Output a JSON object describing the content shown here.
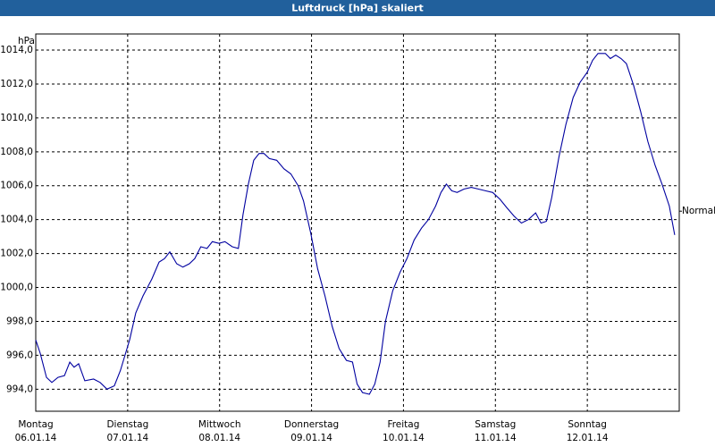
{
  "chart_data": {
    "type": "line",
    "title": "Luftdruck [hPa] skaliert",
    "y_unit": "hPa",
    "x": [
      0,
      1.2,
      2.8,
      4.2,
      5.8,
      7.5,
      8.9,
      10.0,
      11.2,
      12.8,
      15.1,
      16.8,
      18.6,
      20.5,
      22.1,
      24.5,
      26.1,
      28.0,
      30.3,
      32.2,
      33.6,
      35.0,
      36.8,
      38.4,
      40.1,
      41.5,
      43.1,
      44.7,
      46.1,
      47.8,
      49.4,
      51.3,
      52.9,
      54.1,
      55.5,
      56.9,
      58.3,
      59.6,
      61.0,
      62.9,
      64.8,
      66.6,
      68.5,
      69.9,
      71.8,
      73.6,
      75.5,
      77.4,
      79.2,
      81.1,
      82.7,
      83.9,
      85.3,
      87.1,
      88.5,
      89.9,
      91.3,
      93.2,
      95.1,
      96.9,
      98.8,
      100.7,
      102.5,
      104.4,
      105.8,
      107.2,
      108.6,
      110.0,
      111.8,
      113.7,
      115.6,
      117.4,
      119.3,
      121.2,
      123.0,
      124.9,
      126.8,
      128.6,
      130.5,
      131.9,
      133.3,
      134.7,
      136.6,
      138.4,
      140.3,
      142.1,
      144.0,
      145.4,
      146.8,
      148.7,
      150.0,
      151.4,
      152.8,
      154.2,
      156.1,
      157.9,
      159.8,
      161.7,
      163.5,
      165.4,
      166.8
    ],
    "values": [
      996.9,
      996.1,
      994.7,
      994.4,
      994.7,
      994.8,
      995.6,
      995.3,
      995.5,
      994.5,
      994.6,
      994.4,
      994.0,
      994.2,
      995.1,
      996.9,
      998.5,
      999.5,
      1000.5,
      1001.5,
      1001.7,
      1002.1,
      1001.4,
      1001.2,
      1001.4,
      1001.7,
      1002.4,
      1002.3,
      1002.7,
      1002.6,
      1002.7,
      1002.4,
      1002.3,
      1004.3,
      1006.1,
      1007.5,
      1007.9,
      1007.9,
      1007.6,
      1007.5,
      1007.0,
      1006.7,
      1006.0,
      1005.1,
      1003.2,
      1001.1,
      999.5,
      997.7,
      996.4,
      995.7,
      995.6,
      994.3,
      993.8,
      993.7,
      994.3,
      995.6,
      998.0,
      999.8,
      1000.9,
      1001.7,
      1002.8,
      1003.5,
      1004.0,
      1004.8,
      1005.6,
      1006.1,
      1005.7,
      1005.6,
      1005.8,
      1005.9,
      1005.8,
      1005.7,
      1005.6,
      1005.2,
      1004.7,
      1004.2,
      1003.8,
      1004.0,
      1004.4,
      1003.8,
      1003.9,
      1005.3,
      1007.7,
      1009.6,
      1011.2,
      1012.1,
      1012.7,
      1013.4,
      1013.8,
      1013.8,
      1013.5,
      1013.7,
      1013.5,
      1013.2,
      1011.9,
      1010.4,
      1008.6,
      1007.2,
      1006.1,
      1004.8,
      1003.1
    ],
    "color": "#0000a0",
    "xlim": [
      0,
      168
    ],
    "xticks": [
      {
        "value": 0,
        "label": "Montag"
      },
      {
        "value": 24,
        "label": "Dienstag"
      },
      {
        "value": 48,
        "label": "Mittwoch"
      },
      {
        "value": 72,
        "label": "Donnerstag"
      },
      {
        "value": 96,
        "label": "Freitag"
      },
      {
        "value": 120,
        "label": "Samstag"
      },
      {
        "value": 144,
        "label": "Sonntag"
      }
    ],
    "xtick_dates": [
      "06.01.14",
      "07.01.14",
      "08.01.14",
      "09.01.14",
      "10.01.14",
      "11.01.14",
      "12.01.14"
    ],
    "ylim": [
      992.7,
      1014.95
    ],
    "yticks": [
      {
        "value": 994,
        "label": "994,0"
      },
      {
        "value": 996,
        "label": "996,0"
      },
      {
        "value": 998,
        "label": "998,0"
      },
      {
        "value": 1000,
        "label": "1000,0"
      },
      {
        "value": 1002,
        "label": "1002,0"
      },
      {
        "value": 1004,
        "label": "1004,0"
      },
      {
        "value": 1006,
        "label": "1006,0"
      },
      {
        "value": 1008,
        "label": "1008,0"
      },
      {
        "value": 1010,
        "label": "1010,0"
      },
      {
        "value": 1012,
        "label": "1012,0"
      },
      {
        "value": 1014,
        "label": "1014,0"
      }
    ],
    "normal": {
      "label": "Normal",
      "value": 1004.5
    },
    "grid": true
  }
}
